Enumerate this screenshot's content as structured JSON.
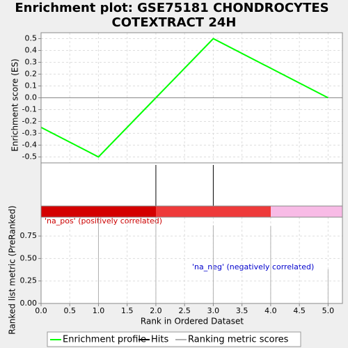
{
  "chart_data": [
    {
      "type": "line",
      "title": [
        "Enrichment plot: GSE75181 CHONDROCYTES",
        "COTEXTRACT 24H"
      ],
      "ylabel": "Enrichment score (ES)",
      "xlim": [
        0,
        5.25
      ],
      "xticks": [
        {
          "value": 0,
          "label": "0.0"
        },
        0.5,
        {
          "value": 1,
          "label": "1.0"
        },
        1.5,
        {
          "value": 2,
          "label": "2.0"
        },
        2.5,
        {
          "value": 3,
          "label": "3.0"
        },
        3.5,
        {
          "value": 4,
          "label": "4.0"
        },
        4.5,
        {
          "value": 5,
          "label": "5.0"
        }
      ],
      "ylim": [
        -0.55,
        0.55
      ],
      "yticks": [
        0.5,
        0.4,
        0.3,
        0.2,
        0.1,
        {
          "value": 0,
          "label": "0.0"
        },
        -0.1,
        -0.2,
        -0.3,
        -0.4,
        -0.5
      ],
      "grid": true,
      "x": [
        0,
        1,
        2,
        3,
        4,
        5
      ],
      "series": [
        {
          "name": "Enrichment profile",
          "color": "#00ff00",
          "values": [
            -0.25,
            -0.5,
            0,
            0.5,
            0.25,
            0
          ]
        }
      ]
    },
    {
      "type": "hits",
      "xlim": [
        0,
        5.25
      ],
      "series": [
        {
          "name": "Hits",
          "color": "#000000",
          "x": [
            2,
            3
          ]
        }
      ]
    },
    {
      "type": "bar",
      "xlabel": "Rank in Ordered Dataset",
      "ylabel": "Ranked list metric (PreRanked)",
      "xlim": [
        0,
        5.25
      ],
      "xticks": [
        {
          "value": 0,
          "label": "0.0"
        },
        0.5,
        {
          "value": 1,
          "label": "1.0"
        },
        1.5,
        {
          "value": 2,
          "label": "2.0"
        },
        2.5,
        {
          "value": 3,
          "label": "3.0"
        },
        3.5,
        {
          "value": 4,
          "label": "4.0"
        },
        4.5,
        {
          "value": 5,
          "label": "5.0"
        }
      ],
      "ylim": [
        0,
        0.96
      ],
      "yticks": [
        {
          "value": 0,
          "label": "0.00"
        },
        0.25,
        {
          "value": 0.5,
          "label": "0.50"
        },
        0.75
      ],
      "grid": true,
      "x": [
        1,
        2,
        3,
        4,
        5
      ],
      "series": [
        {
          "name": "Ranking metric scores",
          "color": "#b0b0b0",
          "values": [
            0.96,
            0.96,
            0.87,
            0.86,
            0.38
          ]
        }
      ],
      "annotations": [
        "'na_pos' (positively correlated)",
        "'na_neg' (negatively correlated)"
      ]
    }
  ]
}
